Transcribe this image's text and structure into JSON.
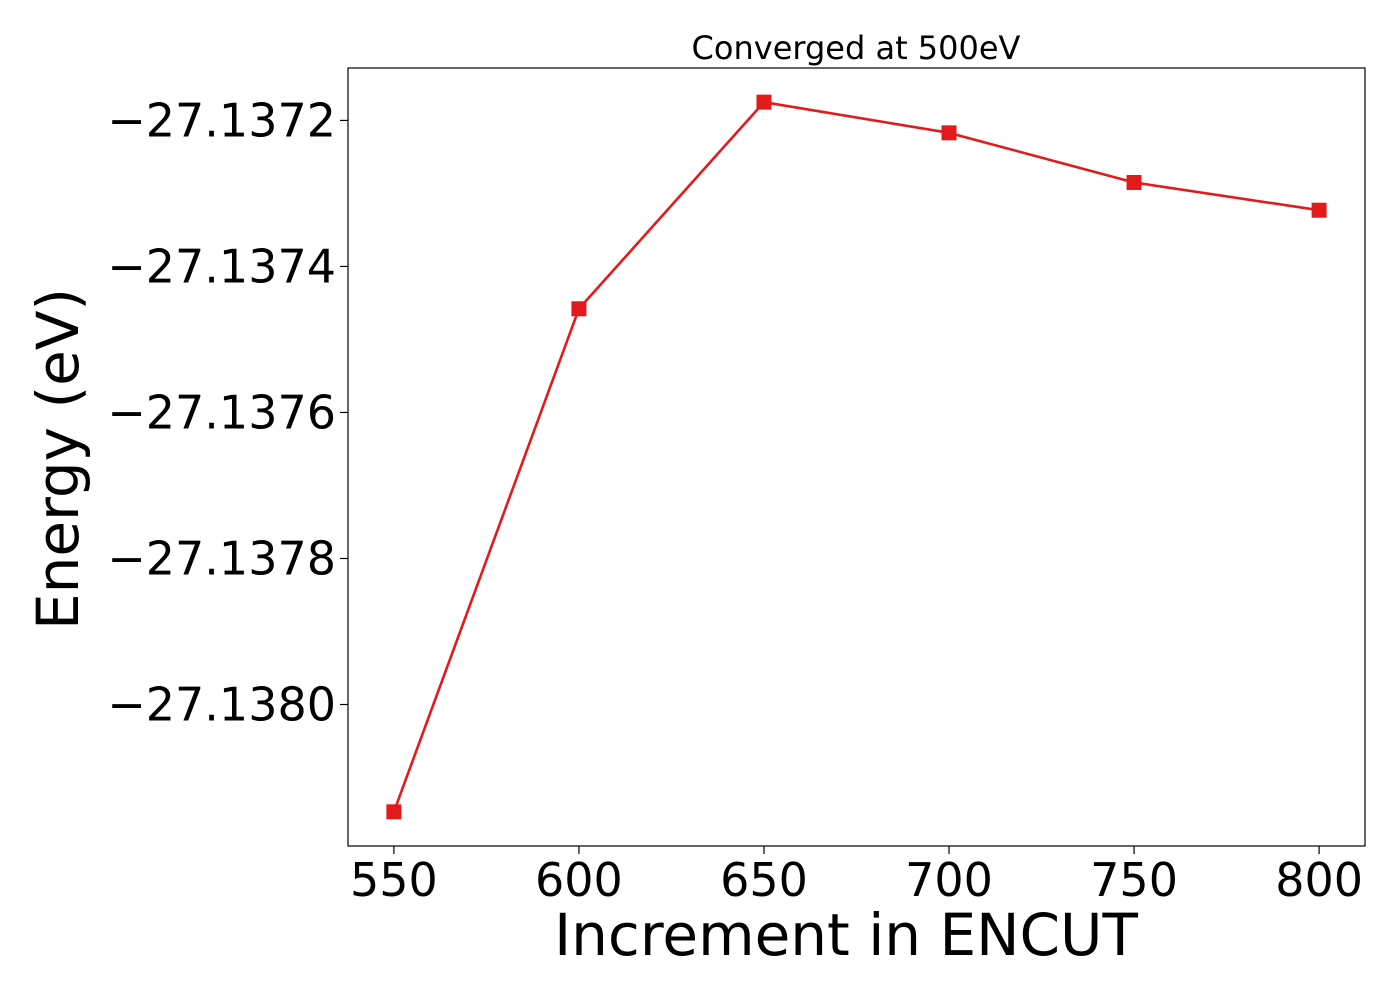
{
  "chart_data": {
    "type": "line",
    "title": "Converged at 500eV",
    "xlabel": "Increment in ENCUT",
    "ylabel": "Energy (eV)",
    "x": [
      550,
      600,
      650,
      700,
      750,
      800
    ],
    "series": [
      {
        "values": [
          -27.138147,
          -27.137458,
          -27.137175,
          -27.137217,
          -27.137285,
          -27.137323
        ],
        "color": "#e31a1c",
        "marker": "square"
      }
    ],
    "xticks": [
      550,
      600,
      650,
      700,
      750,
      800
    ],
    "xtick_labels": [
      "550",
      "600",
      "650",
      "700",
      "750",
      "800"
    ],
    "yticks": [
      -27.1372,
      -27.1374,
      -27.1376,
      -27.1378,
      -27.138
    ],
    "ytick_labels": [
      "−27.1372",
      "−27.1374",
      "−27.1376",
      "−27.1378",
      "−27.1380"
    ],
    "xlim": [
      537.6,
      812.4
    ],
    "ylim": [
      -27.1381938,
      -27.1371282
    ],
    "grid": false,
    "legend": "none"
  }
}
